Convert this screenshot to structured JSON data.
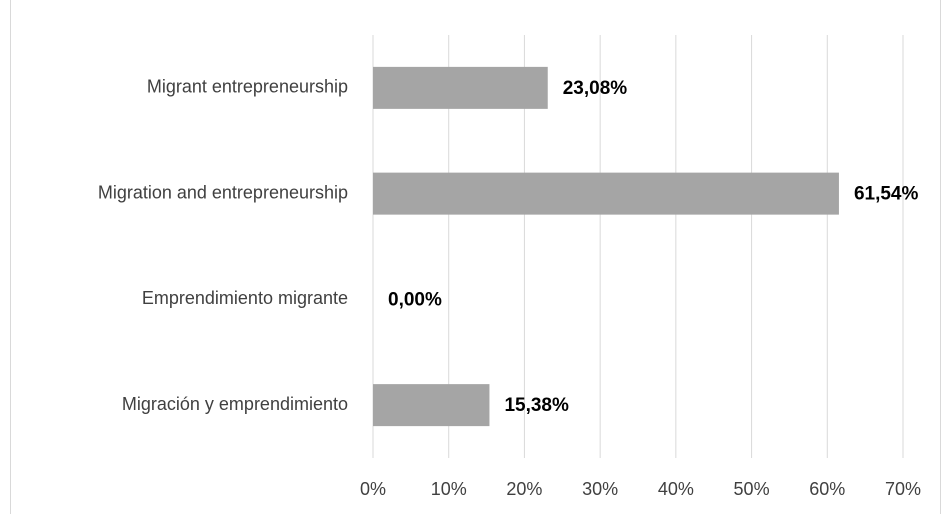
{
  "chart_data": {
    "type": "bar",
    "orientation": "horizontal",
    "categories": [
      "Migrant entrepreneurship",
      "Migration and entrepreneurship",
      "Emprendimiento migrante",
      "Migración y emprendimiento"
    ],
    "values": [
      23.08,
      61.54,
      0,
      15.38
    ],
    "value_labels": [
      "23,08%",
      "61,54%",
      "0,00%",
      "15,38%"
    ],
    "color": "#a5a5a5",
    "xlim": [
      0,
      70
    ],
    "xticks": [
      {
        "value": 0,
        "label": "0%"
      },
      {
        "value": 10,
        "label": "10%"
      },
      {
        "value": 20,
        "label": "20%"
      },
      {
        "value": 30,
        "label": "30%"
      },
      {
        "value": 40,
        "label": "40%"
      },
      {
        "value": 50,
        "label": "50%"
      },
      {
        "value": 60,
        "label": "60%"
      },
      {
        "value": 70,
        "label": "70%"
      }
    ],
    "grid": true
  }
}
